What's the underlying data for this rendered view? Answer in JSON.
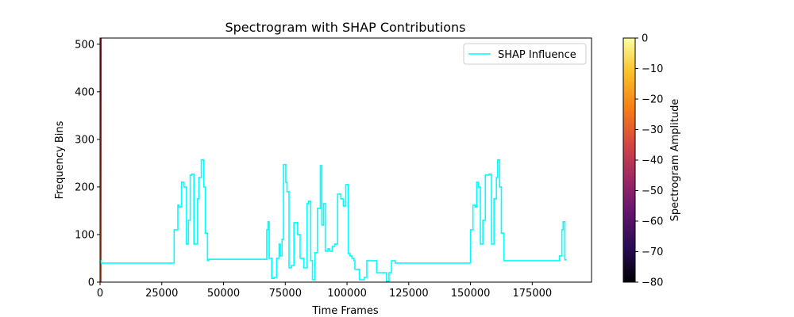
{
  "chart_data": {
    "type": "line",
    "title": "Spectrogram with SHAP Contributions",
    "xlabel": "Time Frames",
    "ylabel": "Frequency Bins",
    "xlim": [
      0,
      199000
    ],
    "ylim": [
      0,
      513
    ],
    "xticks": [
      0,
      25000,
      50000,
      75000,
      100000,
      125000,
      150000,
      175000
    ],
    "yticks": [
      0,
      100,
      200,
      300,
      400,
      500
    ],
    "legend_position": "upper-right",
    "series": [
      {
        "name": "SHAP Influence",
        "color": "#00ffff",
        "style": "step",
        "x": [
          0,
          500,
          30000,
          31500,
          32000,
          33000,
          34000,
          35000,
          35800,
          36500,
          37200,
          38000,
          39500,
          40000,
          41000,
          42000,
          42600,
          43500,
          44000,
          67500,
          68000,
          68500,
          69500,
          70500,
          71500,
          72500,
          73000,
          73700,
          74300,
          75200,
          75700,
          76500,
          77500,
          78500,
          80000,
          81000,
          82500,
          83800,
          84400,
          85300,
          86000,
          87000,
          88000,
          89200,
          89800,
          90500,
          91200,
          92300,
          93000,
          94000,
          95000,
          96200,
          97500,
          98500,
          99500,
          100500,
          101200,
          102000,
          102800,
          103200,
          105000,
          107000,
          108000,
          109000,
          110000,
          112000,
          116000,
          117000,
          118000,
          119500,
          150000,
          151000,
          151800,
          152500,
          153200,
          154000,
          155000,
          156000,
          157500,
          158500,
          159500,
          160500,
          161000,
          161800,
          162500,
          163500,
          186000,
          187000,
          187500,
          188200,
          189000
        ],
        "values": [
          45,
          45,
          40,
          110,
          162,
          158,
          210,
          200,
          80,
          130,
          225,
          227,
          80,
          175,
          220,
          257,
          200,
          103,
          45,
          48,
          110,
          127,
          50,
          8,
          10,
          50,
          80,
          55,
          90,
          247,
          210,
          190,
          30,
          35,
          125,
          100,
          50,
          30,
          165,
          170,
          45,
          5,
          62,
          155,
          245,
          120,
          165,
          65,
          70,
          65,
          75,
          80,
          185,
          175,
          160,
          205,
          60,
          55,
          50,
          45,
          27,
          5,
          10,
          45,
          45,
          45,
          20,
          2,
          20,
          45,
          40,
          110,
          162,
          158,
          210,
          200,
          80,
          130,
          225,
          227,
          80,
          175,
          220,
          257,
          200,
          103,
          45,
          55,
          110,
          127,
          47
        ]
      }
    ],
    "colorbar": {
      "label": "Spectrogram Amplitude",
      "min": -80,
      "max": 0,
      "ticks": [
        0,
        -10,
        -20,
        -30,
        -40,
        -50,
        -60,
        -70,
        -80
      ],
      "colormap": "inferno"
    },
    "spectrogram_strip": {
      "x_start": 0,
      "x_end": 200,
      "color_top": "#8b1a2a",
      "color_bottom": "#d35a1e"
    }
  }
}
